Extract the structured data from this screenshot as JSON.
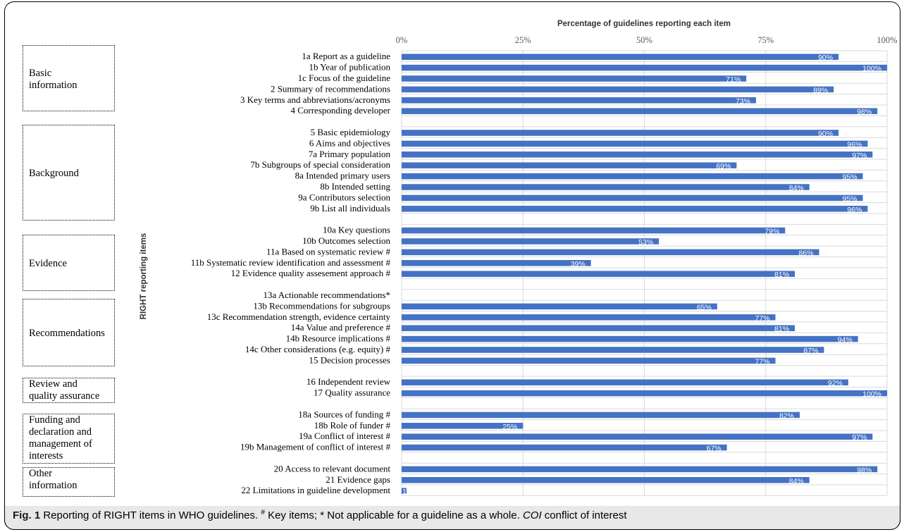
{
  "chart_data": {
    "type": "bar",
    "orientation": "horizontal",
    "title": "Percentage of guidelines reporting each item",
    "ylabel": "RIGHT reporting items",
    "xlim": [
      0,
      100
    ],
    "x_ticks": [
      "0%",
      "25%",
      "50%",
      "75%",
      "100%"
    ],
    "grid": true,
    "bar_color": "#4472c4",
    "categories": [
      "1a Report as a guideline",
      "1b Year of publication",
      "1c Focus of the guideline",
      "2 Summary of recommendations",
      "3 Key terms and abbreviations/acronyms",
      "4 Corresponding developer",
      "",
      "5 Basic epidemiology",
      "6 Aims  and objectives",
      "7a Primary population",
      "7b Subgroups of special consideration",
      "8a Intended primary users",
      "8b Intended setting",
      "9a Contributors selection",
      "9b List all individuals",
      "",
      "10a Key questions",
      "10b Outcomes selection",
      "11a Based on systematic review #",
      "11b Systematic review identification and assessment #",
      "12 Evidence quality assesement approach #",
      "",
      "13a Actionable recommendations*",
      "13b Recommendations for subgroups",
      "13c Recommendation strength, evidence certainty",
      "14a Value and preference #",
      "14b Resource implications #",
      "14c Other considerations (e.g. equity) #",
      "15 Decision processes",
      "",
      "16 Independent review",
      "17 Quality assurance",
      "",
      "18a Sources of funding #",
      "18b Role of funder #",
      "19a Conflict of interest #",
      "19b Management of conflict of interest #",
      "",
      "20 Access to relevant document",
      "21 Evidence gaps",
      "22 Limitations in guideline development"
    ],
    "values": [
      90,
      100,
      71,
      89,
      73,
      98,
      null,
      90,
      96,
      97,
      69,
      95,
      84,
      95,
      96,
      null,
      79,
      53,
      86,
      39,
      81,
      null,
      null,
      65,
      77,
      81,
      94,
      87,
      77,
      null,
      92,
      100,
      null,
      82,
      25,
      97,
      67,
      null,
      98,
      84,
      1
    ],
    "data_labels": [
      "90%",
      "100%",
      "71%",
      "89%",
      "73%",
      "98%",
      "",
      "90%",
      "96%",
      "97%",
      "69%",
      "95%",
      "84%",
      "95%",
      "96%",
      "",
      "79%",
      "53%",
      "86%",
      "39%",
      "81%",
      "",
      "",
      "65%",
      "77%",
      "81%",
      "94%",
      "87%",
      "77%",
      "",
      "92%",
      "100%",
      "",
      "82%",
      "25%",
      "97%",
      "67%",
      "",
      "98%",
      "84%",
      "1%"
    ],
    "groups": [
      {
        "label": "Basic information",
        "lines": [
          "Basic",
          "information"
        ]
      },
      {
        "label": "Background",
        "lines": [
          "Background"
        ]
      },
      {
        "label": "Evidence",
        "lines": [
          "Evidence"
        ]
      },
      {
        "label": "Recommendations",
        "lines": [
          "Recommendations"
        ]
      },
      {
        "label": "Review and quality assurance",
        "lines": [
          "Review and",
          "quality assurance"
        ]
      },
      {
        "label": "Funding and declaration and management of interests",
        "lines": [
          "Funding and",
          "declaration and",
          "management of",
          "interests"
        ]
      },
      {
        "label": "Other information",
        "lines": [
          "Other",
          "information"
        ]
      }
    ]
  },
  "caption": {
    "fig_label": "Fig. 1",
    "text_main": " Reporting of RIGHT items in WHO guidelines. ",
    "sup_hash": "#",
    "text_key": " Key items; * Not applicable for a guideline as a whole. ",
    "coi_abbr": "COI",
    "text_end": " conflict of interest"
  }
}
